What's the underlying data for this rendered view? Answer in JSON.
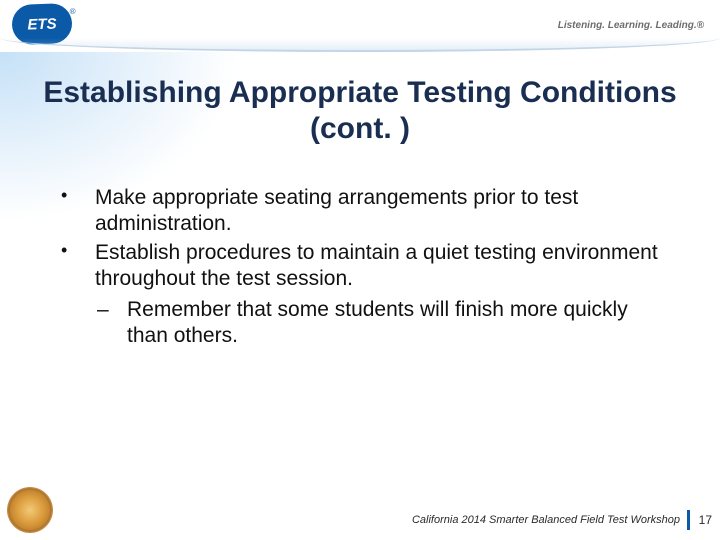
{
  "header": {
    "logo_text": "ETS",
    "tagline": "Listening. Learning. Leading.®"
  },
  "title": "Establishing Appropriate Testing Conditions (cont. )",
  "bullets": [
    "Make appropriate seating arrangements prior to test administration.",
    "Establish procedures to maintain a quiet testing environment throughout the test session."
  ],
  "sub_bullets": [
    "Remember that some students will finish more quickly than others."
  ],
  "footer": {
    "text": "California 2014 Smarter Balanced Field Test Workshop",
    "page": "17"
  },
  "colors": {
    "title_color": "#1a2e52",
    "accent": "#0a5aa8",
    "text": "#111111",
    "background": "#ffffff"
  }
}
